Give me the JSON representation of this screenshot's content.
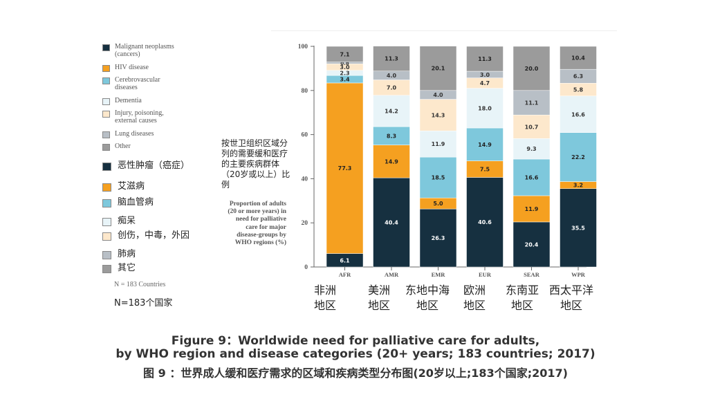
{
  "legend_en": [
    {
      "label": "Malignant neoplasms\n(cancers)",
      "color": "#163040"
    },
    {
      "label": "HIV disease",
      "color": "#f5a020"
    },
    {
      "label": "Cerebrovascular\ndiseases",
      "color": "#7ec8dc"
    },
    {
      "label": "Dementia",
      "color": "#e8f4f8"
    },
    {
      "label": "Injury, poisoning,\nexternal causes",
      "color": "#fde8cc"
    },
    {
      "label": "Lung diseases",
      "color": "#b8bfc6"
    },
    {
      "label": "Other",
      "color": "#9b9b9b"
    }
  ],
  "legend_zh": [
    "恶性肿瘤（癌症）",
    "艾滋病",
    "脑血管病",
    "痴呆",
    "创伤，中毒，外因",
    "肺病",
    "其它"
  ],
  "n_count": "N = 183 Countries",
  "n_count_zh": "N=183个国家",
  "ylabel_zh": "按世卫组织区域分列的需要缓和医疗的主要疾病群体（20岁或以上）比例",
  "ylabel_en": "Proportion of adults (20 or more years) in need for palliative care for major disease-groups by WHO regions (%)",
  "regions_zh": [
    "非洲\n地区",
    "美洲\n地区",
    "东地中海\n地区",
    "欧洲\n地区",
    "东南亚\n地区",
    "西太平洋\n地区"
  ],
  "caption": {
    "line1": "Figure 9：Worldwide need for palliative care for adults,",
    "line2": "by WHO region and disease categories (20+ years; 183 countries; 2017)",
    "line3": "图 9 ：世界成人缓和医疗需求的区域和疾病类型分布图(20岁以上;183个国家;2017)"
  },
  "chart_data": {
    "type": "bar",
    "stacked": true,
    "categories": [
      "AFR",
      "AMR",
      "EMR",
      "EUR",
      "SEAR",
      "WPR"
    ],
    "ylim": [
      0,
      100
    ],
    "yticks": [
      0,
      20,
      40,
      60,
      80,
      100
    ],
    "series": [
      {
        "name": "Malignant neoplasms (cancers)",
        "color": "#163040",
        "label_color": "#ffffff",
        "values": [
          6.1,
          40.4,
          26.3,
          40.6,
          20.4,
          35.5
        ]
      },
      {
        "name": "HIV disease",
        "color": "#f5a020",
        "label_color": "#222222",
        "values": [
          77.3,
          14.9,
          5.0,
          7.5,
          11.9,
          3.2
        ]
      },
      {
        "name": "Cerebrovascular diseases",
        "color": "#7ec8dc",
        "label_color": "#222222",
        "values": [
          3.4,
          8.3,
          18.5,
          14.9,
          16.6,
          22.2
        ]
      },
      {
        "name": "Dementia",
        "color": "#e8f4f8",
        "label_color": "#333333",
        "values": [
          2.3,
          14.2,
          11.9,
          18.0,
          9.3,
          16.6
        ]
      },
      {
        "name": "Injury, poisoning, external causes",
        "color": "#fde8cc",
        "label_color": "#333333",
        "values": [
          3.0,
          7.0,
          14.3,
          4.7,
          10.7,
          5.8
        ]
      },
      {
        "name": "Lung diseases",
        "color": "#b8bfc6",
        "label_color": "#333333",
        "values": [
          0.8,
          4.0,
          4.0,
          3.0,
          11.1,
          6.3
        ]
      },
      {
        "name": "Other",
        "color": "#9b9b9b",
        "label_color": "#222222",
        "values": [
          7.1,
          11.3,
          20.1,
          11.3,
          20.0,
          10.4
        ]
      }
    ]
  }
}
